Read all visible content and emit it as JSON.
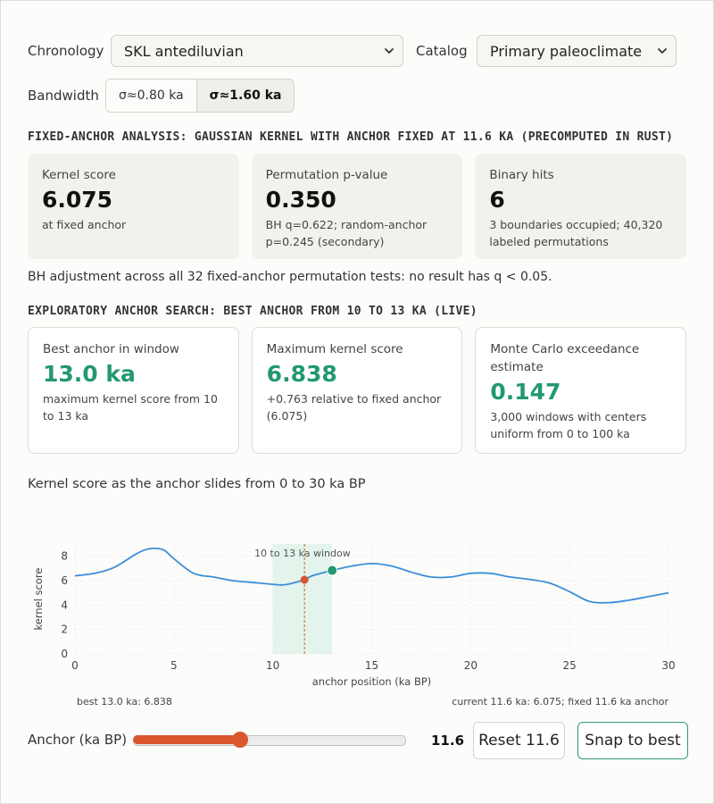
{
  "controls": {
    "chronology_label": "Chronology",
    "chronology_value": "SKL antediluvian",
    "catalog_label": "Catalog",
    "catalog_value": "Primary paleoclimate",
    "bandwidth_label": "Bandwidth",
    "bandwidth_options": [
      "σ≈0.80 ka",
      "σ≈1.60 ka"
    ],
    "bandwidth_selected": "σ≈1.60 ka"
  },
  "fixed": {
    "title": "FIXED-ANCHOR ANALYSIS: GAUSSIAN KERNEL WITH ANCHOR FIXED AT 11.6 KA (PRECOMPUTED IN RUST)",
    "cards": [
      {
        "label": "Kernel score",
        "value": "6.075",
        "sub": "at fixed anchor"
      },
      {
        "label": "Permutation p-value",
        "value": "0.350",
        "sub": "BH q=0.622; random-anchor p=0.245 (secondary)"
      },
      {
        "label": "Binary hits",
        "value": "6",
        "sub": "3 boundaries occupied; 40,320 labeled permutations"
      }
    ],
    "note": "BH adjustment across all 32 fixed-anchor permutation tests: no result has q < 0.05."
  },
  "exploratory": {
    "title": "EXPLORATORY ANCHOR SEARCH: BEST ANCHOR FROM 10 TO 13 KA (LIVE)",
    "cards": [
      {
        "label": "Best anchor in window",
        "value": "13.0 ka",
        "sub": "maximum kernel score from 10 to 13 ka"
      },
      {
        "label": "Maximum kernel score",
        "value": "6.838",
        "sub": "+0.763 relative to fixed anchor (6.075)"
      },
      {
        "label": "Monte Carlo exceedance estimate",
        "value": "0.147",
        "sub": "3,000 windows with centers uniform from 0 to 100 ka"
      }
    ]
  },
  "chart_title": "Kernel score as the anchor slides from 0 to 30 ka BP",
  "chart_data": {
    "type": "line",
    "xlabel": "anchor position (ka BP)",
    "ylabel": "kernel score",
    "xlim": [
      0,
      30
    ],
    "ylim": [
      0,
      9
    ],
    "xticks": [
      0,
      5,
      10,
      15,
      20,
      25,
      30
    ],
    "yticks": [
      0,
      2,
      4,
      6,
      8
    ],
    "x": [
      0,
      1,
      2,
      3,
      3.5,
      4,
      4.5,
      5,
      6,
      7,
      8,
      9,
      10,
      10.5,
      11,
      11.6,
      12,
      13,
      14,
      15,
      16,
      17,
      18,
      19,
      20,
      21,
      22,
      23,
      24,
      25,
      26,
      27,
      28,
      29,
      30
    ],
    "y": [
      6.4,
      6.6,
      7.1,
      8.1,
      8.5,
      8.65,
      8.5,
      7.8,
      6.6,
      6.3,
      6.0,
      5.85,
      5.7,
      5.65,
      5.8,
      6.075,
      6.4,
      6.838,
      7.2,
      7.4,
      7.2,
      6.7,
      6.3,
      6.3,
      6.6,
      6.6,
      6.3,
      6.1,
      5.8,
      5.1,
      4.3,
      4.2,
      4.4,
      4.7,
      5.0
    ],
    "window": {
      "from": 10,
      "to": 13,
      "label": "10 to 13 ka window"
    },
    "fixed_anchor": {
      "x": 11.6,
      "y": 6.075
    },
    "best": {
      "x": 13.0,
      "y": 6.838
    },
    "line_color": "#3b8fd9",
    "fixed_color": "#d9562f",
    "best_color": "#22996e",
    "window_color": "#e3f4ec",
    "footer_left": "best 13.0 ka: 6.838",
    "footer_right": "current 11.6 ka: 6.075; fixed 11.6 ka anchor"
  },
  "anchor": {
    "label": "Anchor (ka BP)",
    "value": 11.6,
    "value_text": "11.6",
    "min": 0,
    "max": 30,
    "reset_label": "Reset 11.6",
    "snap_label": "Snap to best"
  },
  "colors": {
    "accent_green": "#22996e",
    "accent_orange": "#d9562f"
  }
}
